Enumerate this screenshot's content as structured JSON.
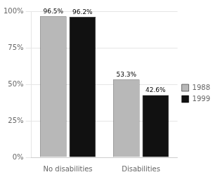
{
  "chart_data": {
    "type": "bar",
    "categories": [
      "No disabilities",
      "Disabilities"
    ],
    "series": [
      {
        "name": "1988",
        "color": "#b8b8b8",
        "values": [
          96.5,
          53.3
        ],
        "value_labels": [
          "96.5%",
          "53.3%"
        ]
      },
      {
        "name": "1999",
        "color": "#111111",
        "values": [
          96.2,
          42.6
        ],
        "value_labels": [
          "96.2%",
          "42.6%"
        ]
      }
    ],
    "ylim": [
      0,
      100
    ],
    "yticks": [
      {
        "value": 0,
        "label": "0%"
      },
      {
        "value": 25,
        "label": "25%"
      },
      {
        "value": 50,
        "label": "50%"
      },
      {
        "value": 75,
        "label": "75%"
      },
      {
        "value": 100,
        "label": "100%"
      }
    ],
    "grid": true,
    "legend": "right",
    "data_labels": true
  }
}
